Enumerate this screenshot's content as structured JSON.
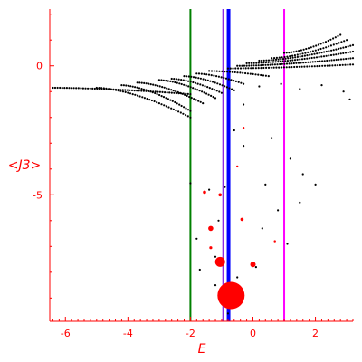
{
  "chart_data": {
    "type": "scatter",
    "title": "",
    "xlabel": "E",
    "ylabel": "<J3>",
    "xlim": [
      -6.5,
      3.2
    ],
    "ylim": [
      -9.9,
      2.2
    ],
    "grid": false,
    "colors": {
      "axis": "#ff0000",
      "text": "#ff0000",
      "points": "#000000",
      "red_points": "#ff0000",
      "line_green": "#008000",
      "line_violet": "#8a2be2",
      "line_blue": "#0000ff",
      "line_magenta": "#ff00ff"
    },
    "x_ticks": [
      {
        "value": -6,
        "label": "-6"
      },
      {
        "value": -4,
        "label": "-4"
      },
      {
        "value": -2,
        "label": "-2"
      },
      {
        "value": 0,
        "label": "0"
      },
      {
        "value": 2,
        "label": "2"
      }
    ],
    "y_ticks": [
      {
        "value": 0,
        "label": "0"
      },
      {
        "value": -5,
        "label": "-5"
      }
    ],
    "vertical_lines": [
      {
        "x": -2.0,
        "color": "#008000"
      },
      {
        "x": -0.95,
        "color": "#8a2be2"
      },
      {
        "x": -0.78,
        "color": "#0000ff"
      },
      {
        "x": 1.0,
        "color": "#ff00ff"
      }
    ],
    "branches": [
      {
        "x0": -6.4,
        "x1": -2.0,
        "y0": -0.85,
        "y1": -1.1,
        "n": 60
      },
      {
        "x0": -5.0,
        "x1": -2.0,
        "y0": -0.85,
        "y1": -2.0,
        "n": 40
      },
      {
        "x0": -4.2,
        "x1": -2.0,
        "y0": -0.75,
        "y1": -1.75,
        "n": 32
      },
      {
        "x0": -3.7,
        "x1": -1.6,
        "y0": -0.65,
        "y1": -1.45,
        "n": 30
      },
      {
        "x0": -3.0,
        "x1": -1.2,
        "y0": -0.55,
        "y1": -1.25,
        "n": 26
      },
      {
        "x0": -2.6,
        "x1": -1.0,
        "y0": -0.5,
        "y1": -1.05,
        "n": 22
      },
      {
        "x0": -2.2,
        "x1": -0.6,
        "y0": -0.4,
        "y1": -0.95,
        "n": 22
      },
      {
        "x0": -1.8,
        "x1": -0.3,
        "y0": -0.3,
        "y1": -0.7,
        "n": 20
      },
      {
        "x0": -1.4,
        "x1": 0.5,
        "y0": -0.2,
        "y1": -0.4,
        "n": 24
      },
      {
        "x0": -0.8,
        "x1": 3.2,
        "y0": -0.1,
        "y1": 0.05,
        "n": 50
      },
      {
        "x0": -0.5,
        "x1": 3.2,
        "y0": 0.0,
        "y1": 0.3,
        "n": 50
      },
      {
        "x0": -0.2,
        "x1": 3.2,
        "y0": 0.1,
        "y1": 0.55,
        "n": 45
      },
      {
        "x0": 0.2,
        "x1": 3.2,
        "y0": 0.2,
        "y1": 0.8,
        "n": 40
      },
      {
        "x0": 0.6,
        "x1": 3.0,
        "y0": 0.3,
        "y1": 1.0,
        "n": 30
      },
      {
        "x0": 1.0,
        "x1": 2.8,
        "y0": 0.5,
        "y1": 1.2,
        "n": 24
      }
    ],
    "scatter_points": [
      {
        "x": 0.2,
        "y": -0.8
      },
      {
        "x": 0.9,
        "y": -0.7
      },
      {
        "x": 1.5,
        "y": -0.9
      },
      {
        "x": 2.2,
        "y": -0.75
      },
      {
        "x": 2.9,
        "y": -1.0
      },
      {
        "x": 3.1,
        "y": -1.3
      },
      {
        "x": -0.3,
        "y": -1.5
      },
      {
        "x": -0.6,
        "y": -2.5
      },
      {
        "x": 0.6,
        "y": -2.8
      },
      {
        "x": -0.3,
        "y": -3.1
      },
      {
        "x": 1.2,
        "y": -3.6
      },
      {
        "x": 1.6,
        "y": -4.2
      },
      {
        "x": 2.0,
        "y": -4.6
      },
      {
        "x": 0.4,
        "y": -4.6
      },
      {
        "x": -0.9,
        "y": -4.7
      },
      {
        "x": -1.4,
        "y": -4.8
      },
      {
        "x": -2.0,
        "y": -4.55
      },
      {
        "x": 0.8,
        "y": -5.6
      },
      {
        "x": 1.5,
        "y": -5.3
      },
      {
        "x": -1.1,
        "y": -6.0
      },
      {
        "x": -1.8,
        "y": -6.7
      },
      {
        "x": 0.3,
        "y": -6.3
      },
      {
        "x": 1.1,
        "y": -6.9
      },
      {
        "x": -1.2,
        "y": -7.4
      },
      {
        "x": -1.7,
        "y": -7.9
      },
      {
        "x": 0.1,
        "y": -7.8
      },
      {
        "x": -0.5,
        "y": -8.2
      },
      {
        "x": -0.7,
        "y": -9.1
      },
      {
        "x": -0.8,
        "y": -9.6
      },
      {
        "x": -1.2,
        "y": -8.5
      }
    ],
    "red_points": [
      {
        "x": -0.3,
        "y": -2.4,
        "r": 1.2
      },
      {
        "x": -0.5,
        "y": -3.9,
        "r": 1.2
      },
      {
        "x": -1.55,
        "y": -4.9,
        "r": 1.8
      },
      {
        "x": -1.05,
        "y": -5.0,
        "r": 1.8
      },
      {
        "x": -0.35,
        "y": -5.95,
        "r": 1.8
      },
      {
        "x": -1.35,
        "y": -6.3,
        "r": 2.8
      },
      {
        "x": -1.35,
        "y": -7.05,
        "r": 1.6
      },
      {
        "x": 0.7,
        "y": -6.8,
        "r": 1.2
      },
      {
        "x": -1.05,
        "y": -7.6,
        "r": 5.5
      },
      {
        "x": 0.0,
        "y": -7.7,
        "r": 3.0
      },
      {
        "x": -0.7,
        "y": -8.9,
        "r": 15
      }
    ]
  }
}
